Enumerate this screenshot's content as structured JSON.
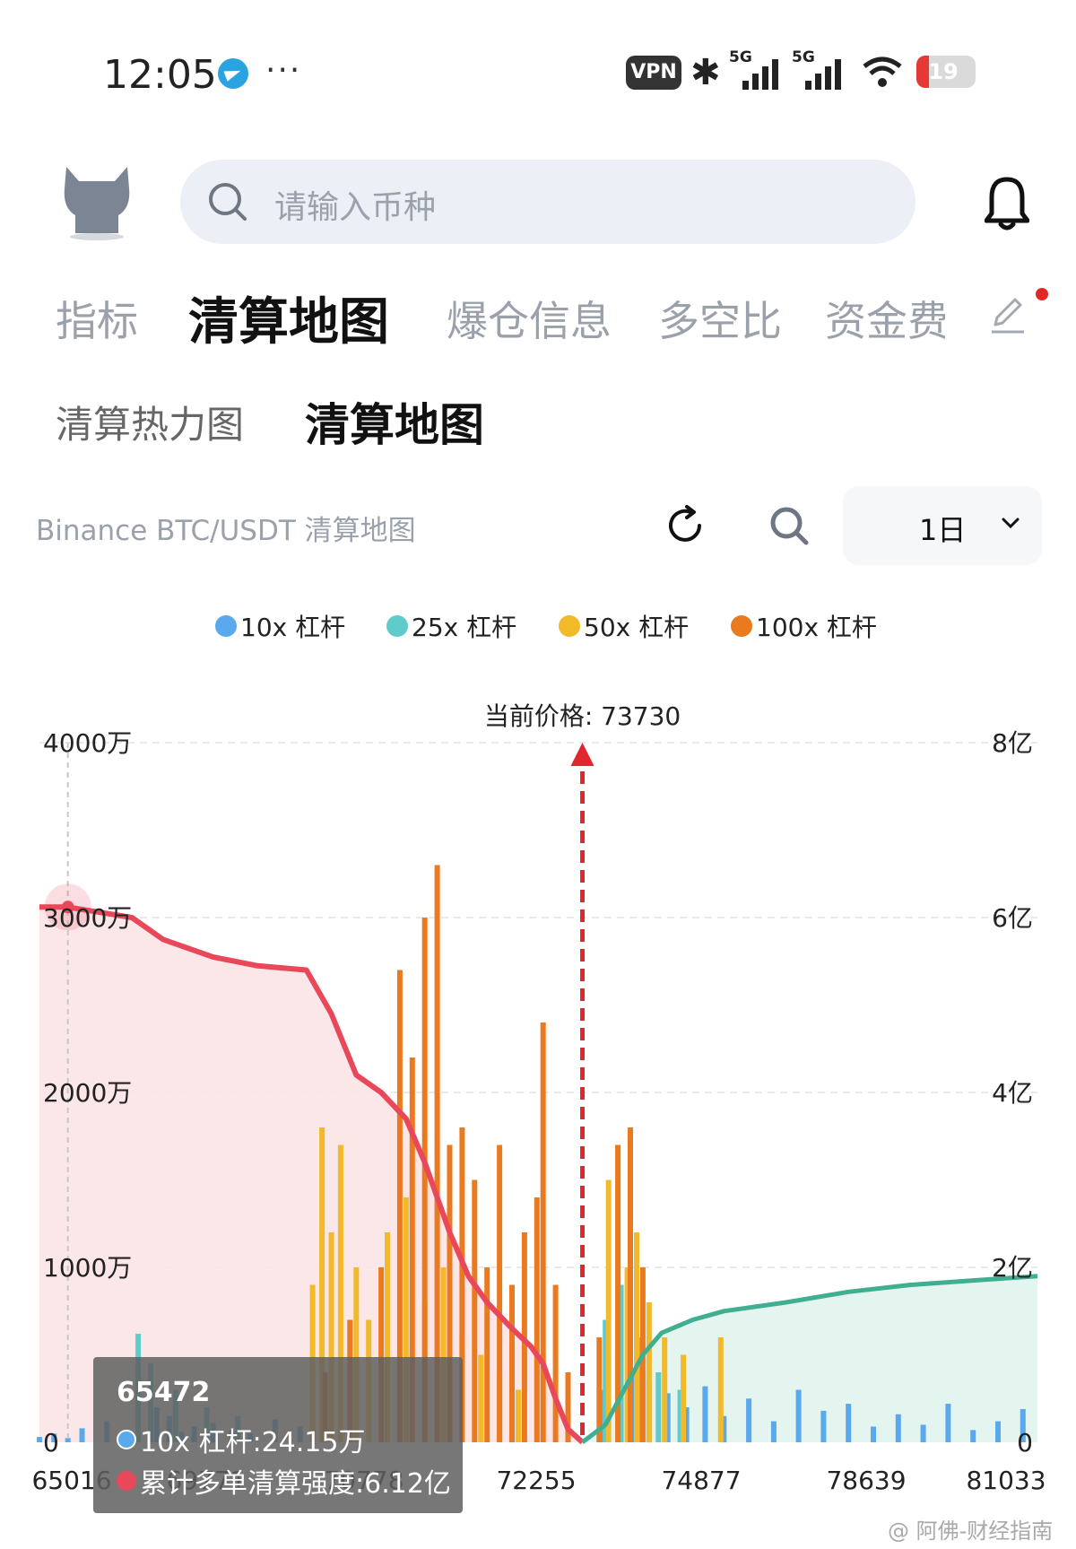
{
  "status_bar": {
    "time": "12:05",
    "more": "···",
    "vpn": "VPN",
    "sim1": "5G",
    "sim2": "5G",
    "battery": "19",
    "icons": [
      "telegram-icon",
      "more-icon",
      "vpn-icon",
      "bluetooth-icon",
      "signal-icon",
      "signal-icon",
      "wifi-icon",
      "battery-icon"
    ]
  },
  "search": {
    "placeholder": "请输入币种"
  },
  "tabs": [
    "指标",
    "清算地图",
    "爆仓信息",
    "多空比",
    "资金费:"
  ],
  "active_tab": "清算地图",
  "subtabs": [
    "清算热力图",
    "清算地图"
  ],
  "active_subtab": "清算地图",
  "chart_header": {
    "title": "Binance BTC/USDT 清算地图",
    "period": "1日"
  },
  "legend": [
    {
      "label": "10x 杠杆",
      "color": "#5aa9ec"
    },
    {
      "label": "25x 杠杆",
      "color": "#5fcbcb"
    },
    {
      "label": "50x 杠杆",
      "color": "#f2b92b"
    },
    {
      "label": "100x 杠杆",
      "color": "#ea7a20"
    }
  ],
  "tooltip": {
    "title": "65472",
    "row1": "10x 杠杆:24.15万",
    "row2": "累计多单清算强度:6.12亿",
    "row1_color": "#5aa9ec",
    "row2_color": "#e9485a"
  },
  "watermark": "@ 阿佛-财经指南",
  "chart_data": {
    "type": "bar",
    "current_price_label": "当前价格: 73730",
    "current_price": 73730,
    "x_tick_labels": [
      "65016",
      "69771",
      "70778",
      "72255",
      "74877",
      "78639",
      "81033"
    ],
    "xlim": [
      65016,
      81033
    ],
    "y_left_ticks": [
      "0",
      "1000万",
      "2000万",
      "3000万",
      "4000万"
    ],
    "y_left_lim": [
      0,
      40000000
    ],
    "y_right_ticks": [
      "0",
      "2亿",
      "4亿",
      "6亿",
      "8亿"
    ],
    "y_right_lim": [
      0,
      800000000
    ],
    "grid": true,
    "legend_position": "top-center",
    "series": [
      {
        "name": "10x 杠杆",
        "color": "#5aa9ec",
        "values": [
          [
            65016,
            300000
          ],
          [
            65250,
            500000
          ],
          [
            65472,
            241500
          ],
          [
            65700,
            800000
          ],
          [
            66100,
            1200000
          ],
          [
            66500,
            400000
          ],
          [
            66900,
            2000000
          ],
          [
            67100,
            1500000
          ],
          [
            67300,
            600000
          ],
          [
            67500,
            900000
          ],
          [
            67800,
            1100000
          ],
          [
            68100,
            700000
          ],
          [
            68400,
            500000
          ],
          [
            68800,
            1300000
          ],
          [
            69200,
            900000
          ],
          [
            69600,
            600000
          ],
          [
            74050,
            3000000
          ],
          [
            74300,
            5000000
          ],
          [
            74550,
            4200000
          ],
          [
            74800,
            3500000
          ],
          [
            75100,
            2800000
          ],
          [
            75400,
            2000000
          ],
          [
            75700,
            3200000
          ],
          [
            76000,
            1500000
          ],
          [
            76400,
            2500000
          ],
          [
            76800,
            1200000
          ],
          [
            77200,
            3000000
          ],
          [
            77600,
            1800000
          ],
          [
            78000,
            2200000
          ],
          [
            78400,
            900000
          ],
          [
            78800,
            1600000
          ],
          [
            79200,
            1000000
          ],
          [
            79600,
            2200000
          ],
          [
            80000,
            700000
          ],
          [
            80400,
            1200000
          ],
          [
            80800,
            1900000
          ]
        ]
      },
      {
        "name": "25x 杠杆",
        "color": "#5fcbcb",
        "values": [
          [
            66600,
            6200000
          ],
          [
            66800,
            4500000
          ],
          [
            67200,
            3000000
          ],
          [
            67700,
            2000000
          ],
          [
            68200,
            1500000
          ],
          [
            74100,
            7000000
          ],
          [
            74350,
            9000000
          ],
          [
            74650,
            6000000
          ],
          [
            74950,
            4000000
          ],
          [
            75300,
            3000000
          ]
        ]
      },
      {
        "name": "50x 杠杆",
        "color": "#f2b92b",
        "values": [
          [
            69400,
            9000000
          ],
          [
            69550,
            18000000
          ],
          [
            69700,
            12000000
          ],
          [
            69850,
            17000000
          ],
          [
            70100,
            10000000
          ],
          [
            70300,
            7000000
          ],
          [
            70600,
            12000000
          ],
          [
            70900,
            14000000
          ],
          [
            71200,
            8000000
          ],
          [
            71500,
            10000000
          ],
          [
            71800,
            6000000
          ],
          [
            72100,
            5000000
          ],
          [
            72400,
            4000000
          ],
          [
            72700,
            3000000
          ],
          [
            74150,
            15000000
          ],
          [
            74300,
            17000000
          ],
          [
            74450,
            10000000
          ],
          [
            74600,
            12000000
          ],
          [
            74800,
            8000000
          ],
          [
            75050,
            6000000
          ],
          [
            75350,
            5000000
          ],
          [
            75950,
            6000000
          ]
        ]
      },
      {
        "name": "100x 杠杆",
        "color": "#ea7a20",
        "values": [
          [
            69600,
            4000000
          ],
          [
            70000,
            7000000
          ],
          [
            70500,
            10000000
          ],
          [
            70800,
            27000000
          ],
          [
            71000,
            22000000
          ],
          [
            71200,
            30000000
          ],
          [
            71400,
            33000000
          ],
          [
            71600,
            17000000
          ],
          [
            71800,
            18000000
          ],
          [
            72000,
            15000000
          ],
          [
            72200,
            10000000
          ],
          [
            72400,
            17000000
          ],
          [
            72600,
            9000000
          ],
          [
            72800,
            12000000
          ],
          [
            73000,
            14000000
          ],
          [
            73100,
            24000000
          ],
          [
            73300,
            9000000
          ],
          [
            73500,
            4000000
          ],
          [
            74000,
            6000000
          ],
          [
            74300,
            17000000
          ],
          [
            74500,
            18000000
          ],
          [
            74700,
            10000000
          ]
        ]
      }
    ],
    "cumulative_long": {
      "name": "累计多单清算强度",
      "color": "#e9485a",
      "axis": "right",
      "values": [
        [
          65016,
          612000000
        ],
        [
          65472,
          612000000
        ],
        [
          66500,
          600000000
        ],
        [
          67000,
          575000000
        ],
        [
          67800,
          555000000
        ],
        [
          68500,
          545000000
        ],
        [
          69300,
          540000000
        ],
        [
          69700,
          490000000
        ],
        [
          70100,
          420000000
        ],
        [
          70500,
          400000000
        ],
        [
          70900,
          370000000
        ],
        [
          71200,
          320000000
        ],
        [
          71600,
          240000000
        ],
        [
          71900,
          190000000
        ],
        [
          72200,
          160000000
        ],
        [
          72600,
          130000000
        ],
        [
          72900,
          110000000
        ],
        [
          73100,
          90000000
        ],
        [
          73300,
          50000000
        ],
        [
          73500,
          15000000
        ],
        [
          73730,
          0
        ]
      ]
    },
    "cumulative_short": {
      "name": "累计空单清算强度",
      "axis": "right",
      "color": "#3fae91",
      "values": [
        [
          73730,
          0
        ],
        [
          74100,
          20000000
        ],
        [
          74400,
          60000000
        ],
        [
          74700,
          100000000
        ],
        [
          75000,
          125000000
        ],
        [
          75500,
          140000000
        ],
        [
          76000,
          150000000
        ],
        [
          77000,
          160000000
        ],
        [
          78000,
          172000000
        ],
        [
          79000,
          180000000
        ],
        [
          80000,
          185000000
        ],
        [
          81033,
          190000000
        ]
      ]
    }
  }
}
